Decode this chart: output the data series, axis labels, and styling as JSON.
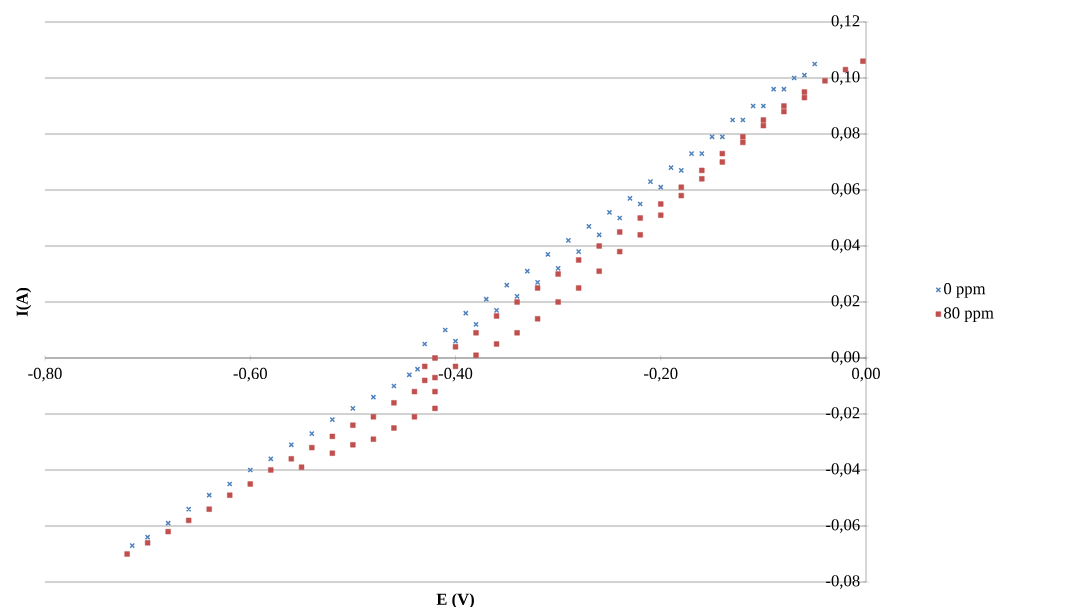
{
  "chart_data": {
    "type": "scatter",
    "xlabel": "E (V)",
    "ylabel": "I(A)",
    "xlim": [
      -0.8,
      0.0
    ],
    "ylim": [
      -0.08,
      0.12
    ],
    "xticks": [
      {
        "value": -0.8,
        "label": "-0,80"
      },
      {
        "value": -0.6,
        "label": "-0,60"
      },
      {
        "value": -0.4,
        "label": "-0,40"
      },
      {
        "value": -0.2,
        "label": "-0,20"
      },
      {
        "value": 0.0,
        "label": "0,00"
      }
    ],
    "yticks": [
      {
        "value": -0.08,
        "label": "-0,08"
      },
      {
        "value": -0.06,
        "label": "-0,06"
      },
      {
        "value": -0.04,
        "label": "-0,04"
      },
      {
        "value": -0.02,
        "label": "-0,02"
      },
      {
        "value": 0.0,
        "label": "0,00"
      },
      {
        "value": 0.02,
        "label": "0,02"
      },
      {
        "value": 0.04,
        "label": "0,04"
      },
      {
        "value": 0.06,
        "label": "0,06"
      },
      {
        "value": 0.08,
        "label": "0,08"
      },
      {
        "value": 0.1,
        "label": "0,10"
      },
      {
        "value": 0.12,
        "label": "0,12"
      }
    ],
    "grid": "y",
    "legend": "right",
    "series": [
      {
        "name": "0 ppm",
        "color": "#4f81bd",
        "marker": "cross",
        "x": [
          -0.715,
          -0.7,
          -0.68,
          -0.66,
          -0.64,
          -0.62,
          -0.6,
          -0.58,
          -0.56,
          -0.54,
          -0.52,
          -0.5,
          -0.48,
          -0.46,
          -0.445,
          -0.437,
          -0.42,
          -0.4,
          -0.38,
          -0.36,
          -0.34,
          -0.32,
          -0.3,
          -0.28,
          -0.26,
          -0.24,
          -0.22,
          -0.2,
          -0.18,
          -0.16,
          -0.14,
          -0.12,
          -0.1,
          -0.08,
          -0.06,
          -0.05,
          -0.07,
          -0.09,
          -0.11,
          -0.13,
          -0.15,
          -0.17,
          -0.19,
          -0.21,
          -0.23,
          -0.25,
          -0.27,
          -0.29,
          -0.31,
          -0.33,
          -0.35,
          -0.37,
          -0.39,
          -0.41,
          -0.43
        ],
        "values": [
          -0.067,
          -0.064,
          -0.059,
          -0.054,
          -0.049,
          -0.045,
          -0.04,
          -0.036,
          -0.031,
          -0.027,
          -0.022,
          -0.018,
          -0.014,
          -0.01,
          -0.006,
          -0.004,
          0.0,
          0.006,
          0.012,
          0.017,
          0.022,
          0.027,
          0.032,
          0.038,
          0.044,
          0.05,
          0.055,
          0.061,
          0.067,
          0.073,
          0.079,
          0.085,
          0.09,
          0.096,
          0.101,
          0.105,
          0.1,
          0.096,
          0.09,
          0.085,
          0.079,
          0.073,
          0.068,
          0.063,
          0.057,
          0.052,
          0.047,
          0.042,
          0.037,
          0.031,
          0.026,
          0.021,
          0.016,
          0.01,
          0.005
        ]
      },
      {
        "name": "80 ppm",
        "color": "#c0504d",
        "marker": "square",
        "x": [
          -0.72,
          -0.7,
          -0.68,
          -0.66,
          -0.64,
          -0.62,
          -0.6,
          -0.58,
          -0.56,
          -0.54,
          -0.52,
          -0.5,
          -0.48,
          -0.46,
          -0.44,
          -0.43,
          -0.43,
          -0.42,
          -0.4,
          -0.38,
          -0.36,
          -0.34,
          -0.32,
          -0.3,
          -0.28,
          -0.26,
          -0.24,
          -0.22,
          -0.2,
          -0.18,
          -0.16,
          -0.14,
          -0.12,
          -0.1,
          -0.08,
          -0.06,
          -0.04,
          -0.02,
          -0.003,
          -0.06,
          -0.08,
          -0.1,
          -0.12,
          -0.14,
          -0.16,
          -0.18,
          -0.2,
          -0.22,
          -0.24,
          -0.26,
          -0.28,
          -0.3,
          -0.32,
          -0.34,
          -0.36,
          -0.38,
          -0.4,
          -0.42,
          -0.42,
          -0.42,
          -0.44,
          -0.46,
          -0.48,
          -0.5,
          -0.52,
          -0.55
        ],
        "values": [
          -0.07,
          -0.066,
          -0.062,
          -0.058,
          -0.054,
          -0.049,
          -0.045,
          -0.04,
          -0.036,
          -0.032,
          -0.028,
          -0.024,
          -0.021,
          -0.016,
          -0.012,
          -0.008,
          -0.003,
          0.0,
          0.004,
          0.009,
          0.015,
          0.02,
          0.025,
          0.03,
          0.035,
          0.04,
          0.045,
          0.05,
          0.055,
          0.061,
          0.067,
          0.073,
          0.079,
          0.085,
          0.09,
          0.095,
          0.099,
          0.103,
          0.106,
          0.093,
          0.088,
          0.083,
          0.077,
          0.07,
          0.064,
          0.058,
          0.051,
          0.044,
          0.038,
          0.031,
          0.025,
          0.02,
          0.014,
          0.009,
          0.005,
          0.001,
          -0.003,
          -0.007,
          -0.012,
          -0.018,
          -0.021,
          -0.025,
          -0.029,
          -0.031,
          -0.034,
          -0.039
        ]
      }
    ]
  }
}
